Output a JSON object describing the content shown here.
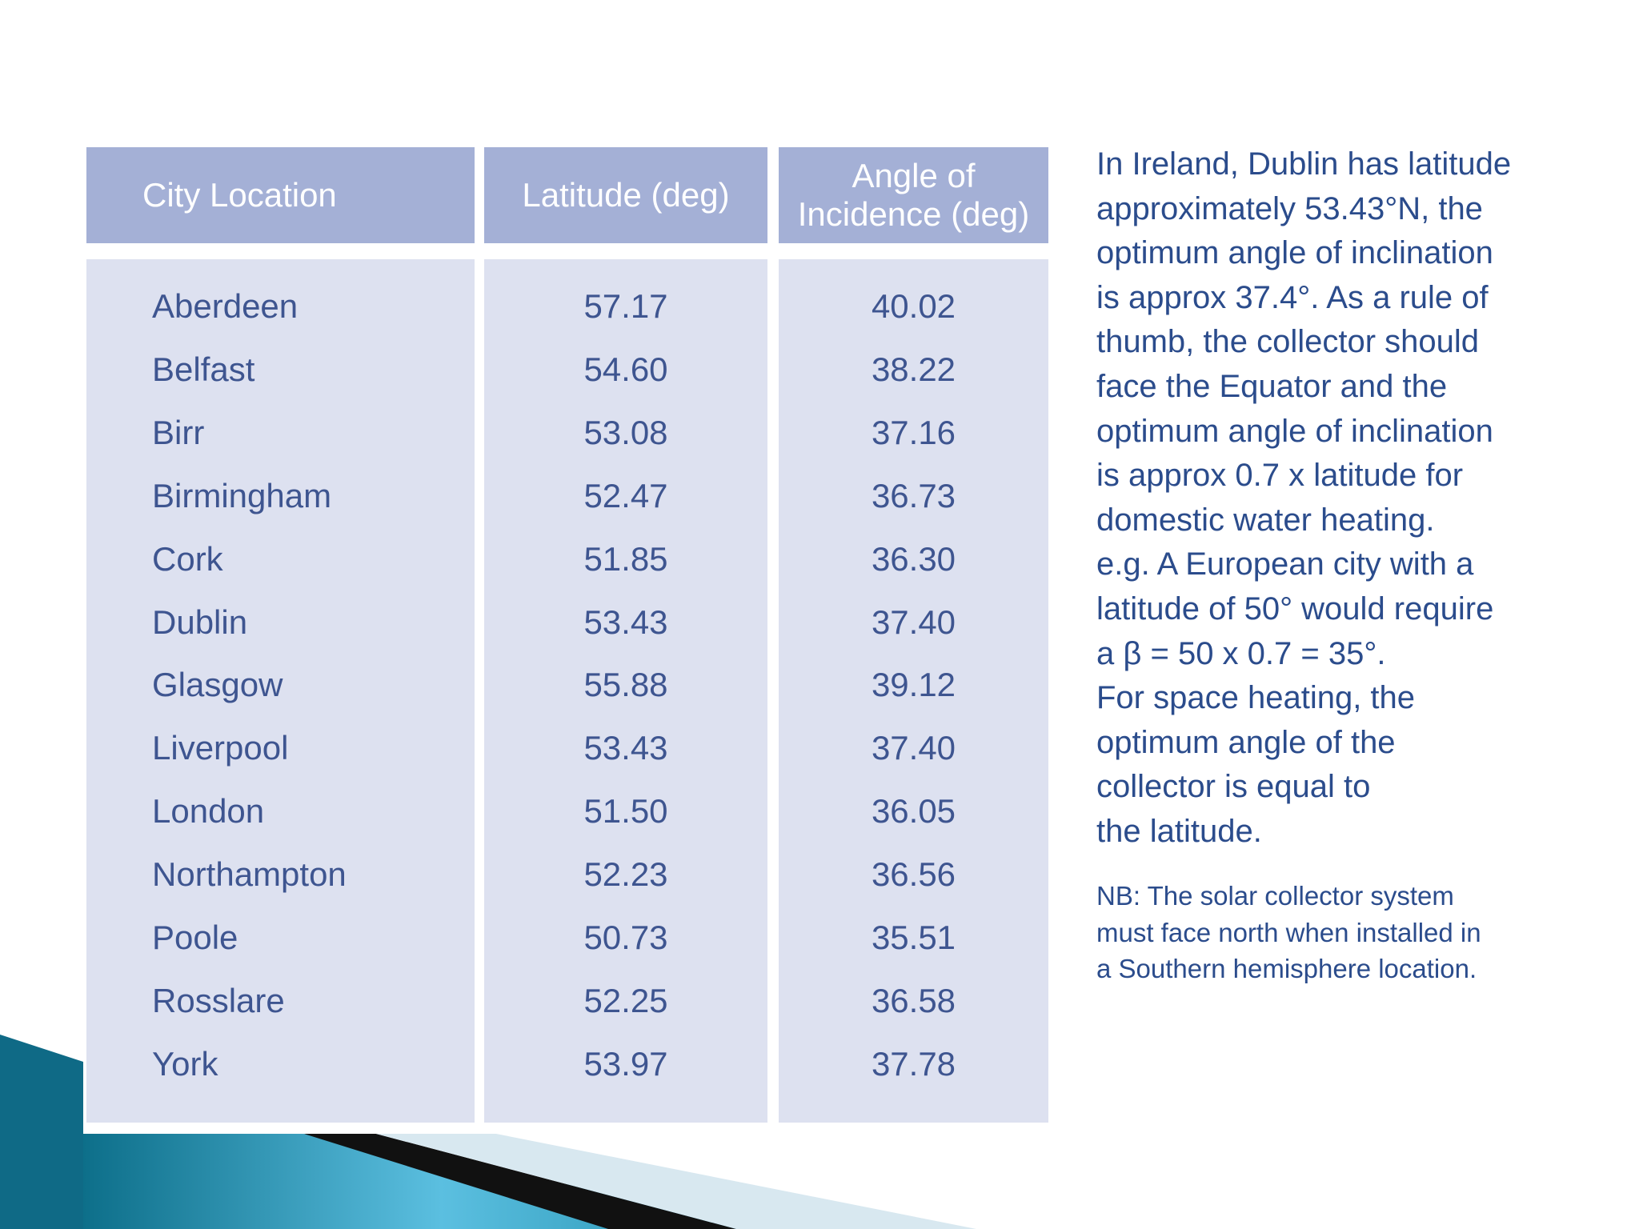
{
  "table": {
    "header": [
      "City Location",
      "Latitude (deg)",
      "Angle of Incidence (deg)"
    ],
    "rows": [
      [
        "Aberdeen",
        "57.17",
        "40.02"
      ],
      [
        "Belfast",
        "54.60",
        "38.22"
      ],
      [
        "Birr",
        "53.08",
        "37.16"
      ],
      [
        "Birmingham",
        "52.47",
        "36.73"
      ],
      [
        "Cork",
        "51.85",
        "36.30"
      ],
      [
        "Dublin",
        "53.43",
        "37.40"
      ],
      [
        "Glasgow",
        "55.88",
        "39.12"
      ],
      [
        "Liverpool",
        "53.43",
        "37.40"
      ],
      [
        "London",
        "51.50",
        "36.05"
      ],
      [
        "Northampton",
        "52.23",
        "36.56"
      ],
      [
        "Poole",
        "50.73",
        "35.51"
      ],
      [
        "Rosslare",
        "52.25",
        "36.58"
      ],
      [
        "York",
        "53.97",
        "37.78"
      ]
    ]
  },
  "paragraph": [
    "In Ireland, Dublin has latitude",
    "approximately 53.43°N, the",
    "optimum angle of inclination",
    "is approx 37.4°. As a rule of",
    "thumb, the collector should",
    "face the Equator and the",
    "optimum angle of inclination",
    "is approx 0.7 x latitude for",
    "domestic water heating.",
    "e.g. A European city with a",
    "latitude of 50° would require",
    "a β = 50 x 0.7 = 35°.",
    "For space heating, the",
    "optimum angle of the",
    "collector is equal to",
    "the latitude."
  ],
  "note": [
    "NB: The solar collector system",
    "must face north when installed in",
    "a Southern hemisphere location."
  ]
}
